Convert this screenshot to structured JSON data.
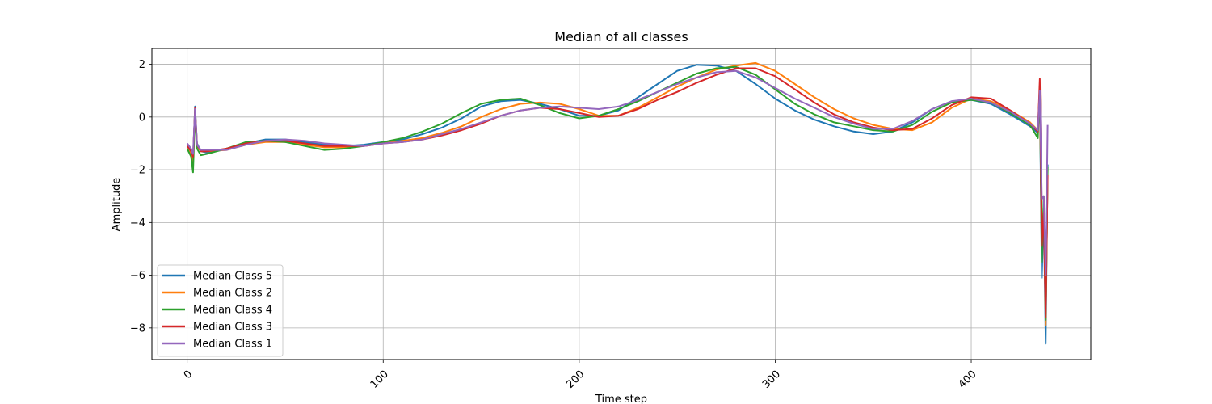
{
  "chart_data": {
    "type": "line",
    "title": "Median of all classes",
    "xlabel": "Time step",
    "ylabel": "Amplitude",
    "xlim": [
      -18,
      461
    ],
    "ylim": [
      -9.2,
      2.6
    ],
    "x_ticks": [
      0,
      100,
      200,
      300,
      400
    ],
    "y_ticks": [
      2,
      0,
      -2,
      -4,
      -6,
      -8
    ],
    "x_tick_rotation": 45,
    "grid": true,
    "legend_position": "lower-left",
    "series": [
      {
        "name": "Median Class 5",
        "color": "#1f77b4",
        "x": [
          0,
          2,
          3,
          4,
          5,
          7,
          10,
          20,
          30,
          40,
          50,
          60,
          70,
          80,
          90,
          100,
          110,
          120,
          130,
          140,
          150,
          160,
          170,
          180,
          190,
          200,
          210,
          220,
          230,
          240,
          250,
          260,
          270,
          280,
          290,
          300,
          310,
          320,
          330,
          340,
          350,
          360,
          370,
          380,
          390,
          400,
          410,
          420,
          430,
          434,
          435,
          436,
          437,
          438,
          439
        ],
        "y": [
          -1.1,
          -1.3,
          -1.6,
          0.4,
          -1.0,
          -1.3,
          -1.35,
          -1.2,
          -1.0,
          -0.85,
          -0.85,
          -0.95,
          -1.05,
          -1.1,
          -1.05,
          -0.95,
          -0.85,
          -0.65,
          -0.4,
          -0.05,
          0.4,
          0.6,
          0.65,
          0.5,
          0.3,
          0.05,
          0.05,
          0.25,
          0.75,
          1.25,
          1.75,
          1.98,
          1.95,
          1.75,
          1.25,
          0.7,
          0.25,
          -0.1,
          -0.35,
          -0.55,
          -0.65,
          -0.55,
          -0.2,
          0.3,
          0.6,
          0.65,
          0.5,
          0.1,
          -0.35,
          -0.6,
          1.0,
          -6.1,
          -3.5,
          -8.6,
          -1.8
        ]
      },
      {
        "name": "Median Class 2",
        "color": "#ff7f0e",
        "x": [
          0,
          2,
          3,
          4,
          5,
          7,
          10,
          20,
          30,
          40,
          50,
          60,
          70,
          80,
          90,
          100,
          110,
          120,
          130,
          140,
          150,
          160,
          170,
          180,
          190,
          200,
          210,
          220,
          230,
          240,
          250,
          260,
          270,
          280,
          290,
          300,
          310,
          320,
          330,
          340,
          350,
          360,
          370,
          380,
          390,
          400,
          410,
          420,
          430,
          434,
          435,
          436,
          437,
          438,
          439
        ],
        "y": [
          -1.2,
          -1.4,
          -1.7,
          0.2,
          -1.1,
          -1.3,
          -1.3,
          -1.25,
          -1.05,
          -0.95,
          -0.95,
          -1.05,
          -1.15,
          -1.15,
          -1.1,
          -1.0,
          -0.9,
          -0.8,
          -0.6,
          -0.35,
          0.0,
          0.3,
          0.5,
          0.55,
          0.5,
          0.3,
          0.05,
          0.05,
          0.35,
          0.75,
          1.15,
          1.5,
          1.8,
          1.95,
          2.05,
          1.75,
          1.25,
          0.75,
          0.3,
          -0.05,
          -0.3,
          -0.45,
          -0.5,
          -0.2,
          0.35,
          0.7,
          0.6,
          0.25,
          -0.2,
          -0.5,
          1.2,
          -4.9,
          -3.2,
          -7.9,
          -2.0
        ]
      },
      {
        "name": "Median Class 4",
        "color": "#2ca02c",
        "x": [
          0,
          2,
          3,
          4,
          5,
          7,
          10,
          20,
          30,
          40,
          50,
          60,
          70,
          80,
          90,
          100,
          110,
          120,
          130,
          140,
          150,
          160,
          170,
          180,
          190,
          200,
          210,
          220,
          230,
          240,
          250,
          260,
          270,
          280,
          290,
          300,
          310,
          320,
          330,
          340,
          350,
          360,
          370,
          380,
          390,
          400,
          410,
          420,
          430,
          434,
          435,
          436,
          437,
          438,
          439
        ],
        "y": [
          -1.2,
          -1.5,
          -2.1,
          0.2,
          -1.2,
          -1.45,
          -1.4,
          -1.2,
          -0.95,
          -0.9,
          -0.95,
          -1.1,
          -1.25,
          -1.2,
          -1.1,
          -0.95,
          -0.8,
          -0.55,
          -0.25,
          0.15,
          0.5,
          0.65,
          0.7,
          0.45,
          0.15,
          -0.05,
          0.05,
          0.3,
          0.6,
          0.95,
          1.3,
          1.65,
          1.85,
          1.9,
          1.6,
          1.05,
          0.5,
          0.1,
          -0.2,
          -0.35,
          -0.5,
          -0.55,
          -0.3,
          0.2,
          0.55,
          0.65,
          0.55,
          0.15,
          -0.3,
          -0.8,
          1.1,
          -5.5,
          -3.0,
          -7.7,
          -1.9
        ]
      },
      {
        "name": "Median Class 3",
        "color": "#d62728",
        "x": [
          0,
          2,
          3,
          4,
          5,
          7,
          10,
          20,
          30,
          40,
          50,
          60,
          70,
          80,
          90,
          100,
          110,
          120,
          130,
          140,
          150,
          160,
          170,
          180,
          190,
          200,
          210,
          220,
          230,
          240,
          250,
          260,
          270,
          280,
          290,
          300,
          310,
          320,
          330,
          340,
          350,
          360,
          370,
          380,
          390,
          400,
          410,
          420,
          430,
          434,
          435,
          436,
          437,
          438,
          439
        ],
        "y": [
          -1.1,
          -1.3,
          -1.5,
          0.35,
          -1.05,
          -1.3,
          -1.3,
          -1.2,
          -1.0,
          -0.9,
          -0.9,
          -1.0,
          -1.1,
          -1.1,
          -1.1,
          -1.0,
          -0.95,
          -0.85,
          -0.7,
          -0.5,
          -0.25,
          0.05,
          0.25,
          0.35,
          0.3,
          0.15,
          0.0,
          0.05,
          0.3,
          0.65,
          0.95,
          1.3,
          1.6,
          1.85,
          1.85,
          1.55,
          1.05,
          0.55,
          0.1,
          -0.2,
          -0.4,
          -0.5,
          -0.45,
          -0.05,
          0.45,
          0.75,
          0.7,
          0.25,
          -0.25,
          -0.55,
          1.45,
          -4.9,
          -3.6,
          -7.6,
          -2.2
        ]
      },
      {
        "name": "Median Class 1",
        "color": "#9467bd",
        "x": [
          0,
          2,
          3,
          4,
          5,
          7,
          10,
          20,
          30,
          40,
          50,
          60,
          70,
          80,
          90,
          100,
          110,
          120,
          130,
          140,
          150,
          160,
          170,
          180,
          190,
          200,
          210,
          220,
          230,
          240,
          250,
          260,
          270,
          280,
          290,
          300,
          310,
          320,
          330,
          340,
          350,
          360,
          370,
          380,
          390,
          400,
          410,
          420,
          430,
          434,
          435,
          436,
          437,
          438,
          439
        ],
        "y": [
          -1.0,
          -1.2,
          -1.4,
          0.3,
          -1.05,
          -1.25,
          -1.25,
          -1.25,
          -1.05,
          -0.9,
          -0.85,
          -0.9,
          -1.0,
          -1.05,
          -1.1,
          -1.0,
          -0.95,
          -0.85,
          -0.65,
          -0.45,
          -0.2,
          0.05,
          0.25,
          0.35,
          0.4,
          0.35,
          0.3,
          0.4,
          0.65,
          0.95,
          1.25,
          1.5,
          1.7,
          1.75,
          1.5,
          1.1,
          0.7,
          0.35,
          0.0,
          -0.25,
          -0.45,
          -0.45,
          -0.15,
          0.3,
          0.6,
          0.7,
          0.55,
          0.2,
          -0.25,
          -0.5,
          1.0,
          -3.1,
          -3.0,
          -6.0,
          -0.3
        ]
      }
    ]
  }
}
